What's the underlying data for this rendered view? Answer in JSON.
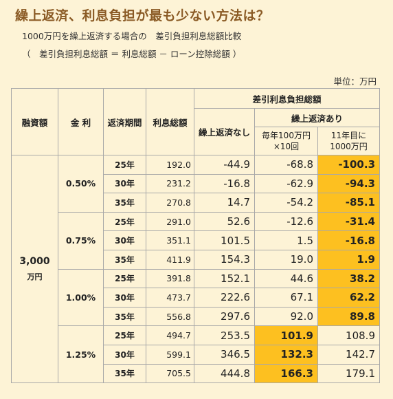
{
  "title": "繰上返済、利息負担が最も少ない方法は？",
  "subtitle1": "1000万円を繰上返済する場合の　差引負担利息総額比較",
  "subtitle2": "（　差引負担利息総額 ＝ 利息総額 － ローン控除総額 ）",
  "unit_label": "単位：万円",
  "headers": {
    "loan": "融資額",
    "rate": "金 利",
    "term": "返済期間",
    "interest_total": "利息総額",
    "net_interest": "差引利息負担総額",
    "no_prepay": "繰上返済なし",
    "with_prepay": "繰上返済あり",
    "option1_line1": "毎年100万円",
    "option1_line2": "×10回",
    "option2_line1": "11年目に",
    "option2_line2": "1000万円"
  },
  "loan_amount": "3,000",
  "loan_unit": "万円",
  "groups": [
    {
      "rate": "0.50%",
      "rows": [
        {
          "term": "25年",
          "interest": "192.0",
          "none": "-44.9",
          "opt1": "-68.8",
          "opt2": "-100.3",
          "best": "opt2"
        },
        {
          "term": "30年",
          "interest": "231.2",
          "none": "-16.8",
          "opt1": "-62.9",
          "opt2": "-94.3",
          "best": "opt2"
        },
        {
          "term": "35年",
          "interest": "270.8",
          "none": "14.7",
          "opt1": "-54.2",
          "opt2": "-85.1",
          "best": "opt2"
        }
      ]
    },
    {
      "rate": "0.75%",
      "rows": [
        {
          "term": "25年",
          "interest": "291.0",
          "none": "52.6",
          "opt1": "-12.6",
          "opt2": "-31.4",
          "best": "opt2"
        },
        {
          "term": "30年",
          "interest": "351.1",
          "none": "101.5",
          "opt1": "1.5",
          "opt2": "-16.8",
          "best": "opt2"
        },
        {
          "term": "35年",
          "interest": "411.9",
          "none": "154.3",
          "opt1": "19.0",
          "opt2": "1.9",
          "best": "opt2"
        }
      ]
    },
    {
      "rate": "1.00%",
      "rows": [
        {
          "term": "25年",
          "interest": "391.8",
          "none": "152.1",
          "opt1": "44.6",
          "opt2": "38.2",
          "best": "opt2"
        },
        {
          "term": "30年",
          "interest": "473.7",
          "none": "222.6",
          "opt1": "67.1",
          "opt2": "62.2",
          "best": "opt2"
        },
        {
          "term": "35年",
          "interest": "556.8",
          "none": "297.6",
          "opt1": "92.0",
          "opt2": "89.8",
          "best": "opt2"
        }
      ]
    },
    {
      "rate": "1.25%",
      "rows": [
        {
          "term": "25年",
          "interest": "494.7",
          "none": "253.5",
          "opt1": "101.9",
          "opt2": "108.9",
          "best": "opt1"
        },
        {
          "term": "30年",
          "interest": "599.1",
          "none": "346.5",
          "opt1": "132.3",
          "opt2": "142.7",
          "best": "opt1"
        },
        {
          "term": "35年",
          "interest": "705.5",
          "none": "444.8",
          "opt1": "166.3",
          "opt2": "179.1",
          "best": "opt1"
        }
      ]
    }
  ],
  "colors": {
    "highlight": "#fdc020",
    "background": "#fdf3d6",
    "title": "#8a5a24"
  }
}
